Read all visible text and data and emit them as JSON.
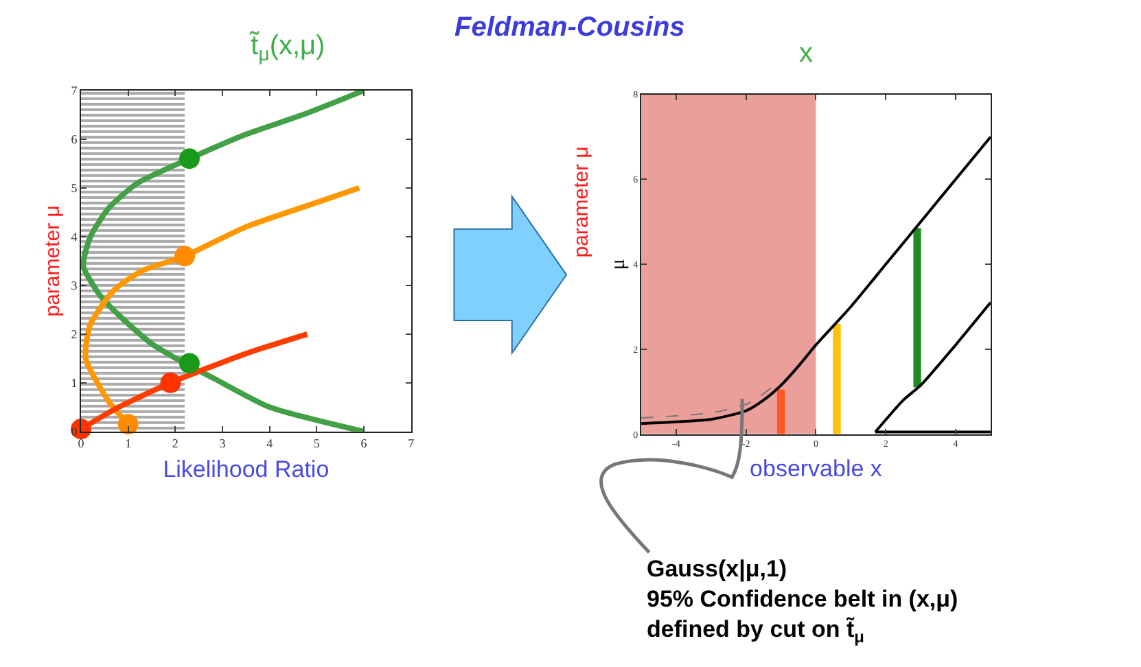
{
  "chart_data": [
    {
      "type": "line",
      "title": "t̃$_{μ}$(x,μ)",
      "xlabel": "Likelihood Ratio",
      "ylabel": "parameter μ",
      "xlim": [
        0,
        7
      ],
      "ylim": [
        0,
        7
      ],
      "xticks": [
        0,
        1,
        2,
        3,
        4,
        5,
        6,
        7
      ],
      "yticks": [
        0,
        1,
        2,
        3,
        4,
        5,
        6,
        7
      ],
      "grid": false,
      "bands": [
        {
          "axis": "x",
          "from": 0,
          "to": 2.2,
          "color": "#555555"
        }
      ],
      "series": [
        {
          "type": "line",
          "color": "#43a047",
          "x": [
            6,
            4,
            2.8,
            2.2,
            1.5,
            0.9,
            0.4,
            0.05,
            0.2,
            0.6,
            1.2,
            2.3,
            3.5,
            4.7,
            6
          ],
          "values": [
            0,
            0.5,
            1.1,
            1.4,
            1.8,
            2.3,
            2.8,
            3.4,
            4.0,
            4.6,
            5.1,
            5.6,
            6.1,
            6.5,
            7
          ]
        },
        {
          "type": "line",
          "color": "#ff9800",
          "x": [
            1.0,
            0.6,
            0.1,
            0.2,
            0.7,
            1.3,
            2.2,
            3.5,
            5.0,
            5.9
          ],
          "values": [
            0.15,
            0.6,
            1.5,
            2.2,
            2.9,
            3.3,
            3.6,
            4.2,
            4.7,
            5.0
          ]
        },
        {
          "type": "line",
          "color": "#ff3d00",
          "x": [
            0,
            0.8,
            1.9,
            3.5,
            4.8
          ],
          "values": [
            0.05,
            0.5,
            1.0,
            1.6,
            2.0
          ]
        },
        {
          "type": "scatter",
          "color": "#1a9a1a",
          "x": [
            2.3,
            2.3
          ],
          "values": [
            5.6,
            1.4
          ]
        },
        {
          "type": "scatter",
          "color": "#ff8c00",
          "x": [
            2.2,
            1.0
          ],
          "values": [
            3.6,
            0.15
          ]
        },
        {
          "type": "scatter",
          "color": "#ff3300",
          "x": [
            0,
            1.9
          ],
          "values": [
            0.05,
            1.0
          ]
        }
      ],
      "annotations": [
        "Feldman-Cousins"
      ]
    },
    {
      "type": "line",
      "title": "x",
      "xlabel": "observable x",
      "ylabel": "μ",
      "xlim": [
        -5,
        5
      ],
      "ylim": [
        0,
        8
      ],
      "xticks": [
        -4,
        -2,
        0,
        2,
        4
      ],
      "yticks": [
        0,
        2,
        4,
        6,
        8
      ],
      "grid": false,
      "bands": [
        {
          "axis": "x",
          "from": -5,
          "to": 0,
          "color": "#eb9f9a"
        }
      ],
      "series": [
        {
          "type": "line",
          "color": "#000000",
          "x": [
            -5,
            -3,
            -2,
            -1.5,
            -1,
            -0.5,
            0,
            1,
            2,
            3,
            4,
            5
          ],
          "values": [
            0.25,
            0.35,
            0.55,
            0.8,
            1.15,
            1.6,
            2.1,
            3.0,
            4.0,
            5.0,
            6.0,
            7.0
          ]
        },
        {
          "type": "line",
          "color": "#000000",
          "x": [
            5,
            4,
            3,
            2.5,
            1.7
          ],
          "values": [
            3.1,
            2.1,
            1.15,
            0.8,
            0.05
          ]
        },
        {
          "type": "line",
          "color": "#000000",
          "x": [
            1.7,
            5
          ],
          "values": [
            0.05,
            0.05
          ]
        },
        {
          "type": "line",
          "color": "#777777",
          "line_style": "dashed",
          "x": [
            -5,
            -3,
            -2,
            -1.5,
            -1.2
          ],
          "values": [
            0.38,
            0.5,
            0.7,
            0.95,
            1.15
          ]
        },
        {
          "type": "bar",
          "color": "#ff5722",
          "x": [
            -1
          ],
          "base": [
            0
          ],
          "values": [
            1.05
          ]
        },
        {
          "type": "bar",
          "color": "#ffc107",
          "x": [
            0.6
          ],
          "base": [
            0
          ],
          "values": [
            2.6
          ]
        },
        {
          "type": "bar",
          "color": "#1e8c1e",
          "x": [
            2.9
          ],
          "base": [
            1.1
          ],
          "values": [
            3.75
          ]
        }
      ],
      "annotations": [
        "parameter μ",
        "Gauss(x|μ,1)\n95% Confidence belt in (x,μ)\ndefined by cut on t̃$_{μ}$"
      ]
    }
  ]
}
